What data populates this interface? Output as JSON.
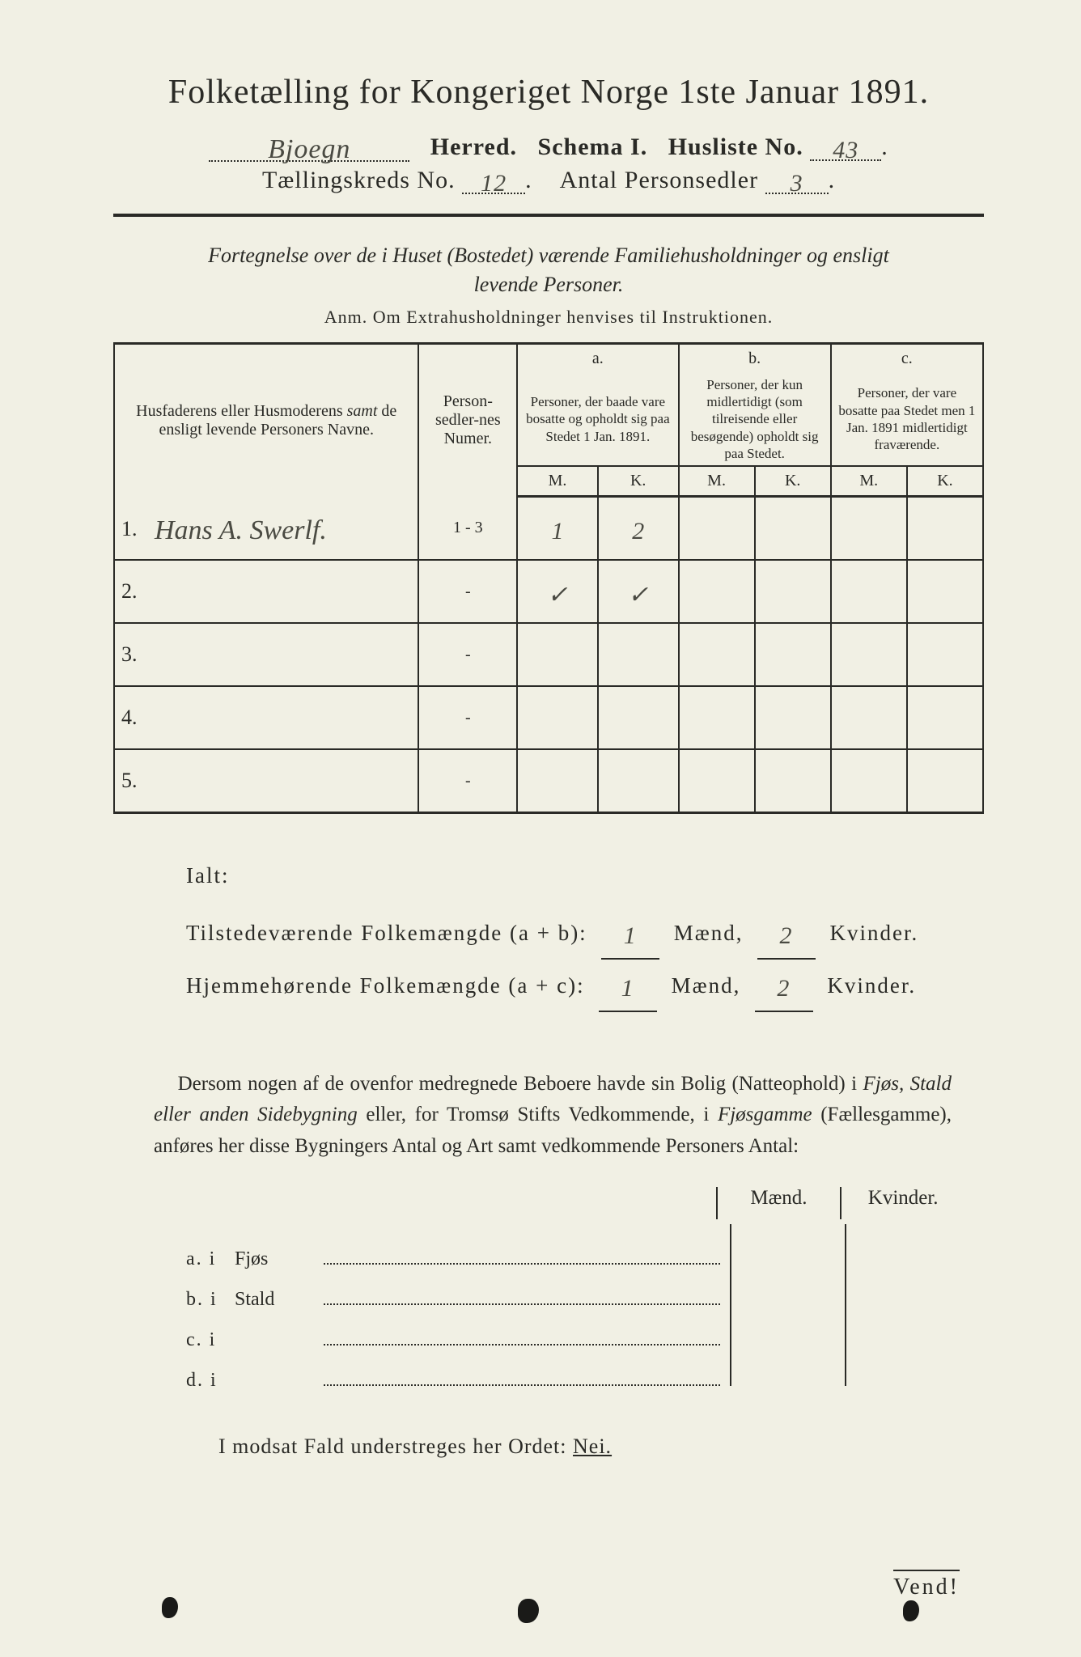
{
  "title": "Folketælling for Kongeriget Norge 1ste Januar 1891.",
  "header": {
    "herred_label_before": "",
    "herred_handwritten": "Bjoegn",
    "herred_label": "Herred.",
    "schema_label": "Schema I.",
    "husliste_label": "Husliste No.",
    "husliste_no": "43",
    "kreds_label": "Tællingskreds No.",
    "kreds_no": "12",
    "antal_label": "Antal Personsedler",
    "antal_no": "3"
  },
  "subhead_line1": "Fortegnelse over de i Huset (Bostedet) værende Familiehusholdninger og ensligt",
  "subhead_line2": "levende Personer.",
  "anm": "Anm.  Om Extrahusholdninger henvises til Instruktionen.",
  "table": {
    "col_names": "Husfaderens eller Husmoderens samt de ensligt levende Personers Navne.",
    "col_names_em": "samt",
    "col_numer": "Person-sedler-nes Numer.",
    "col_a_head": "a.",
    "col_a": "Personer, der baade vare bosatte og opholdt sig paa Stedet 1 Jan. 1891.",
    "col_b_head": "b.",
    "col_b": "Personer, der kun midlertidigt (som tilreisende eller besøgende) opholdt sig paa Stedet.",
    "col_c_head": "c.",
    "col_c": "Personer, der vare bosatte paa Stedet men 1 Jan. 1891 midlertidigt fraværende.",
    "m": "M.",
    "k": "K.",
    "rows": [
      {
        "n": "1.",
        "name": "Hans A. Swerlf.",
        "numer": "1 - 3",
        "am": "1",
        "ak": "2",
        "bm": "",
        "bk": "",
        "cm": "",
        "ck": ""
      },
      {
        "n": "2.",
        "name": "",
        "numer": "-",
        "am": "✓",
        "ak": "✓",
        "bm": "",
        "bk": "",
        "cm": "",
        "ck": ""
      },
      {
        "n": "3.",
        "name": "",
        "numer": "-",
        "am": "",
        "ak": "",
        "bm": "",
        "bk": "",
        "cm": "",
        "ck": ""
      },
      {
        "n": "4.",
        "name": "",
        "numer": "-",
        "am": "",
        "ak": "",
        "bm": "",
        "bk": "",
        "cm": "",
        "ck": ""
      },
      {
        "n": "5.",
        "name": "",
        "numer": "-",
        "am": "",
        "ak": "",
        "bm": "",
        "bk": "",
        "cm": "",
        "ck": ""
      }
    ]
  },
  "summary": {
    "ialt": "Ialt:",
    "line1_label": "Tilstedeværende Folkemængde (a + b):",
    "line2_label": "Hjemmehørende Folkemængde (a + c):",
    "maend": "Mænd,",
    "kvinder": "Kvinder.",
    "v1m": "1",
    "v1k": "2",
    "v2m": "1",
    "v2k": "2"
  },
  "para": "Dersom nogen af de ovenfor medregnede Beboere havde sin Bolig (Natteophold) i Fjøs, Stald eller anden Sidebygning eller, for Tromsø Stifts Vedkommende, i Fjøsgamme (Fællesgamme), anføres her disse Bygningers Antal og Art samt vedkommende Personers Antal:",
  "subtable": {
    "maend": "Mænd.",
    "kvinder": "Kvinder.",
    "rows": [
      {
        "lbl": "a.  i",
        "name": "Fjøs"
      },
      {
        "lbl": "b.  i",
        "name": "Stald"
      },
      {
        "lbl": "c.  i",
        "name": ""
      },
      {
        "lbl": "d.  i",
        "name": ""
      }
    ]
  },
  "modfald": "I modsat Fald understreges her Ordet: ",
  "nei": "Nei.",
  "vend": "Vend!",
  "colors": {
    "paper": "#f1f0e4",
    "ink": "#2a2a26",
    "hand": "#4a4a42"
  },
  "fontsize": {
    "title": 42,
    "header": 30,
    "body": 25,
    "table_head": 20
  }
}
